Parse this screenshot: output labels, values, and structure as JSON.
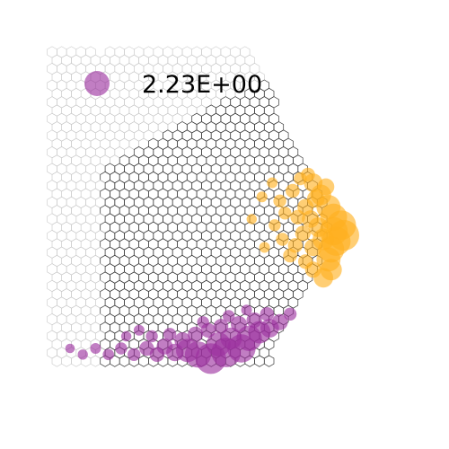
{
  "chart_data": {
    "type": "scatter",
    "title": "",
    "xlabel": "",
    "ylabel": "",
    "grid": false,
    "legend": {
      "placement": "top-left",
      "value_label": "2.23E+00",
      "marker_value": 2.23,
      "marker_color": "#9b2f9e"
    },
    "series": [
      {
        "color": "#ffb01f",
        "points": [
          {
            "x": 10.2,
            "y": 2.6,
            "v": 0.6
          },
          {
            "x": 10.5,
            "y": 2.0,
            "v": 0.8
          },
          {
            "x": 10.8,
            "y": 1.4,
            "v": 1.2
          },
          {
            "x": 11.0,
            "y": 0.9,
            "v": 1.6
          },
          {
            "x": 11.3,
            "y": 0.5,
            "v": 2.0
          },
          {
            "x": 11.0,
            "y": 0.2,
            "v": 1.8
          },
          {
            "x": 11.4,
            "y": 0.0,
            "v": 2.2
          },
          {
            "x": 11.1,
            "y": -0.3,
            "v": 1.9
          },
          {
            "x": 10.9,
            "y": -0.7,
            "v": 1.5
          },
          {
            "x": 10.8,
            "y": -1.2,
            "v": 1.2
          },
          {
            "x": 10.9,
            "y": -1.7,
            "v": 0.9
          },
          {
            "x": 10.6,
            "y": -2.1,
            "v": 0.7
          },
          {
            "x": 10.3,
            "y": 1.8,
            "v": 0.5
          },
          {
            "x": 9.9,
            "y": 1.4,
            "v": 0.4
          },
          {
            "x": 10.1,
            "y": 0.8,
            "v": 0.5
          },
          {
            "x": 10.4,
            "y": 0.4,
            "v": 0.7
          },
          {
            "x": 10.6,
            "y": -0.2,
            "v": 0.9
          },
          {
            "x": 10.2,
            "y": -0.6,
            "v": 0.5
          },
          {
            "x": 9.6,
            "y": 0.9,
            "v": 0.3
          },
          {
            "x": 9.8,
            "y": 0.1,
            "v": 0.35
          },
          {
            "x": 9.5,
            "y": -0.5,
            "v": 0.3
          },
          {
            "x": 9.4,
            "y": 2.2,
            "v": 0.25
          },
          {
            "x": 8.9,
            "y": 1.7,
            "v": 0.2
          },
          {
            "x": 9.1,
            "y": 1.1,
            "v": 0.2
          },
          {
            "x": 8.7,
            "y": 0.5,
            "v": 0.15
          },
          {
            "x": 9.0,
            "y": -0.2,
            "v": 0.2
          },
          {
            "x": 9.3,
            "y": -1.0,
            "v": 0.25
          },
          {
            "x": 9.9,
            "y": -1.3,
            "v": 0.3
          },
          {
            "x": 10.2,
            "y": -1.7,
            "v": 0.4
          },
          {
            "x": 8.6,
            "y": 2.6,
            "v": 0.1
          },
          {
            "x": 8.2,
            "y": 1.9,
            "v": 0.1
          },
          {
            "x": 7.8,
            "y": 0.8,
            "v": 0.08
          },
          {
            "x": 8.3,
            "y": -0.6,
            "v": 0.1
          },
          {
            "x": 9.7,
            "y": 2.8,
            "v": 0.2
          },
          {
            "x": 10.0,
            "y": 3.0,
            "v": 0.25
          },
          {
            "x": 10.7,
            "y": 2.4,
            "v": 0.45
          }
        ]
      },
      {
        "color": "#9b2f9e",
        "points": [
          {
            "x": 6.2,
            "y": -6.1,
            "v": 2.2
          },
          {
            "x": 6.8,
            "y": -5.8,
            "v": 2.0
          },
          {
            "x": 7.4,
            "y": -5.6,
            "v": 1.8
          },
          {
            "x": 5.7,
            "y": -5.9,
            "v": 1.5
          },
          {
            "x": 7.7,
            "y": -5.1,
            "v": 1.4
          },
          {
            "x": 8.1,
            "y": -4.8,
            "v": 1.0
          },
          {
            "x": 5.3,
            "y": -5.7,
            "v": 1.1
          },
          {
            "x": 7.0,
            "y": -5.1,
            "v": 0.9
          },
          {
            "x": 6.5,
            "y": -5.4,
            "v": 1.2
          },
          {
            "x": 8.5,
            "y": -4.6,
            "v": 0.6
          },
          {
            "x": 8.9,
            "y": -4.3,
            "v": 0.4
          },
          {
            "x": 9.3,
            "y": -3.9,
            "v": 0.2
          },
          {
            "x": 4.8,
            "y": -5.8,
            "v": 0.5
          },
          {
            "x": 4.4,
            "y": -5.5,
            "v": 0.4
          },
          {
            "x": 4.1,
            "y": -5.9,
            "v": 0.3
          },
          {
            "x": 3.7,
            "y": -5.6,
            "v": 0.3
          },
          {
            "x": 5.1,
            "y": -5.2,
            "v": 0.4
          },
          {
            "x": 5.6,
            "y": -4.9,
            "v": 0.35
          },
          {
            "x": 6.1,
            "y": -4.7,
            "v": 0.3
          },
          {
            "x": 6.6,
            "y": -4.5,
            "v": 0.3
          },
          {
            "x": 7.3,
            "y": -4.4,
            "v": 0.4
          },
          {
            "x": 7.9,
            "y": -4.2,
            "v": 0.35
          },
          {
            "x": 8.4,
            "y": -3.9,
            "v": 0.25
          },
          {
            "x": 3.2,
            "y": -5.9,
            "v": 0.2
          },
          {
            "x": 2.7,
            "y": -5.6,
            "v": 0.15
          },
          {
            "x": 2.2,
            "y": -5.9,
            "v": 0.12
          },
          {
            "x": 1.7,
            "y": -5.6,
            "v": 0.1
          },
          {
            "x": 1.2,
            "y": -5.9,
            "v": 0.08
          },
          {
            "x": 0.7,
            "y": -5.6,
            "v": 0.06
          },
          {
            "x": 4.6,
            "y": -4.9,
            "v": 0.2
          },
          {
            "x": 5.9,
            "y": -4.3,
            "v": 0.15
          },
          {
            "x": 6.9,
            "y": -4.0,
            "v": 0.15
          },
          {
            "x": 7.6,
            "y": -3.7,
            "v": 0.1
          },
          {
            "x": 3.9,
            "y": -5.0,
            "v": 0.15
          },
          {
            "x": 3.4,
            "y": -4.7,
            "v": 0.1
          },
          {
            "x": 2.9,
            "y": -5.0,
            "v": 0.08
          }
        ]
      }
    ]
  }
}
